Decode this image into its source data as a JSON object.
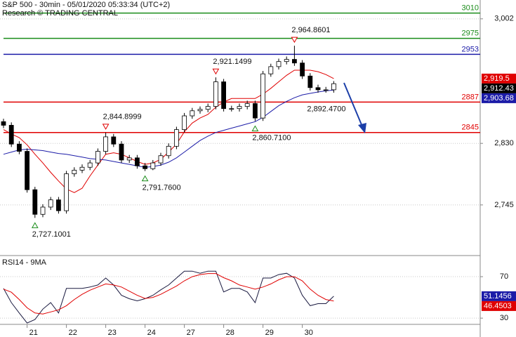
{
  "header": {
    "title": "S&P 500 - 30min - 05/01/2020 05:33:34 (UTC+2)",
    "subtitle": "Research © TRADING CENTRAL"
  },
  "chart_data": [
    {
      "type": "candlestick",
      "open": [
        2860,
        2855,
        2829,
        2819,
        2766,
        2732,
        2742,
        2752,
        2737,
        2788,
        2793,
        2797,
        2803,
        2819,
        2839,
        2829,
        2807,
        2810,
        2799,
        2795,
        2803,
        2813,
        2826,
        2849,
        2868,
        2875,
        2877,
        2881,
        2915,
        2878,
        2878,
        2881,
        2885,
        2865,
        2926,
        2936,
        2943,
        2946,
        2941,
        2923,
        2907,
        2904,
        2904
      ],
      "high": [
        2864,
        2859,
        2833,
        2823,
        2770,
        2746,
        2756,
        2756,
        2792,
        2797,
        2801,
        2807,
        2823,
        2844.8999,
        2843,
        2833,
        2814,
        2814,
        2803,
        2807,
        2817,
        2830,
        2853,
        2872,
        2879,
        2881,
        2885,
        2921.1499,
        2919,
        2882,
        2885,
        2889,
        2889,
        2930,
        2940,
        2947,
        2950,
        2964.8601,
        2945,
        2927,
        2911,
        2908,
        2916
      ],
      "low": [
        2851,
        2825,
        2815,
        2762,
        2727.1001,
        2728,
        2738,
        2733,
        2733,
        2784,
        2789,
        2793,
        2799,
        2815,
        2825,
        2803,
        2803,
        2795,
        2791.76,
        2793,
        2799,
        2809,
        2822,
        2845,
        2864,
        2871,
        2873,
        2877,
        2874,
        2874,
        2874,
        2877,
        2860.71,
        2861,
        2922,
        2932,
        2939,
        2937,
        2919,
        2903,
        2900,
        2900,
        2900
      ],
      "close": [
        2855,
        2829,
        2819,
        2766,
        2732,
        2742,
        2752,
        2737,
        2788,
        2793,
        2797,
        2803,
        2819,
        2839,
        2829,
        2807,
        2810,
        2799,
        2795,
        2803,
        2813,
        2826,
        2849,
        2868,
        2875,
        2877,
        2881,
        2915,
        2878,
        2878,
        2881,
        2885,
        2865,
        2926,
        2936,
        2943,
        2946,
        2941,
        2923,
        2907,
        2904,
        2904,
        2912.43
      ],
      "close_label": "2,912.43",
      "candle_color": "#000000",
      "series": [
        {
          "color": "#e00000",
          "end_label": "2,919.5",
          "values": [
            2849,
            2843,
            2838,
            2828,
            2815,
            2803,
            2790,
            2778,
            2767,
            2762,
            2768,
            2785,
            2800,
            2815,
            2817,
            2815,
            2810,
            2805,
            2801,
            2803,
            2808,
            2818,
            2829,
            2846,
            2858,
            2865,
            2870,
            2880,
            2887,
            2892,
            2892,
            2892,
            2892,
            2898,
            2906,
            2915,
            2924,
            2931,
            2931,
            2931,
            2929,
            2925,
            2919.5
          ]
        },
        {
          "color": "#1c1ca8",
          "end_label": "2,903.68",
          "values": [
            2815,
            2818,
            2821,
            2822,
            2821,
            2820,
            2818,
            2816,
            2815,
            2813,
            2811,
            2809,
            2808,
            2807,
            2805,
            2803,
            2801,
            2799,
            2797,
            2798,
            2800,
            2804,
            2810,
            2818,
            2826,
            2834,
            2840,
            2845,
            2848,
            2851,
            2854,
            2857,
            2860,
            2866,
            2874,
            2882,
            2888,
            2893,
            2897,
            2899,
            2901,
            2902.5,
            2903.68
          ]
        }
      ],
      "levels": [
        {
          "value": 3010,
          "color": "#1a8c1a"
        },
        {
          "value": 2975,
          "color": "#1a8c1a"
        },
        {
          "value": 2953,
          "color": "#1c1ca8"
        },
        {
          "value": 2887,
          "color": "#e00000"
        },
        {
          "value": 2845,
          "color": "#e00000"
        }
      ],
      "annotations": [
        {
          "label": "2,727.1001",
          "value": 2727.1001,
          "kind": "low"
        },
        {
          "label": "2,844.8999",
          "value": 2844.8999,
          "kind": "high"
        },
        {
          "label": "2,791.7600",
          "value": 2791.76,
          "kind": "low"
        },
        {
          "label": "2,921.1499",
          "value": 2921.1499,
          "kind": "high"
        },
        {
          "label": "2,860.7100",
          "value": 2860.71,
          "kind": "low"
        },
        {
          "label": "2,964.8601",
          "value": 2964.8601,
          "kind": "high"
        },
        {
          "label": "2,892.4700",
          "value": 2892.47,
          "kind": "target"
        }
      ],
      "ylim": [
        2677,
        3028
      ],
      "yticks": [
        {
          "value": 3002,
          "label": "3,002"
        },
        {
          "value": 2830,
          "label": "2,830"
        },
        {
          "value": 2745,
          "label": "2,745"
        }
      ],
      "grid": true
    },
    {
      "type": "line",
      "title": "RSI14 - 9MA",
      "categories": [
        null,
        null,
        null,
        "21",
        null,
        null,
        null,
        null,
        "22",
        null,
        null,
        null,
        null,
        "23",
        null,
        null,
        null,
        null,
        "24",
        null,
        null,
        null,
        null,
        "27",
        null,
        null,
        null,
        null,
        "28",
        null,
        null,
        null,
        null,
        "29",
        null,
        null,
        null,
        null,
        "30",
        null,
        null,
        null,
        null
      ],
      "series": [
        {
          "color": "#1a1a40",
          "end_color": "#1c1ca8",
          "values": [
            58.7,
            45,
            35,
            25.3,
            28.7,
            38.7,
            45,
            35,
            58.7,
            58.7,
            58.7,
            60,
            62,
            68.7,
            62,
            52,
            48.7,
            46.7,
            48.7,
            52,
            57.3,
            62,
            68.7,
            75.3,
            75.3,
            73.3,
            75.3,
            75.3,
            55.3,
            58.7,
            58.7,
            55.3,
            45,
            68.7,
            68.7,
            72,
            73.3,
            68.7,
            52,
            42,
            44,
            44,
            51.1456
          ]
        },
        {
          "color": "#e00000",
          "end_color": "#e00000",
          "values": [
            58,
            55,
            48,
            40,
            35,
            34,
            36,
            38,
            42,
            48,
            53,
            57,
            60,
            63,
            62,
            60,
            56,
            52,
            49,
            50,
            53,
            57,
            61,
            66,
            70,
            72,
            73,
            73,
            69,
            66,
            62,
            60,
            58,
            60,
            63,
            67,
            70,
            70,
            66,
            58,
            52,
            48,
            46.4503
          ]
        }
      ],
      "ylim": [
        24,
        89
      ],
      "yticks": [
        70,
        30
      ],
      "grid": true
    }
  ]
}
